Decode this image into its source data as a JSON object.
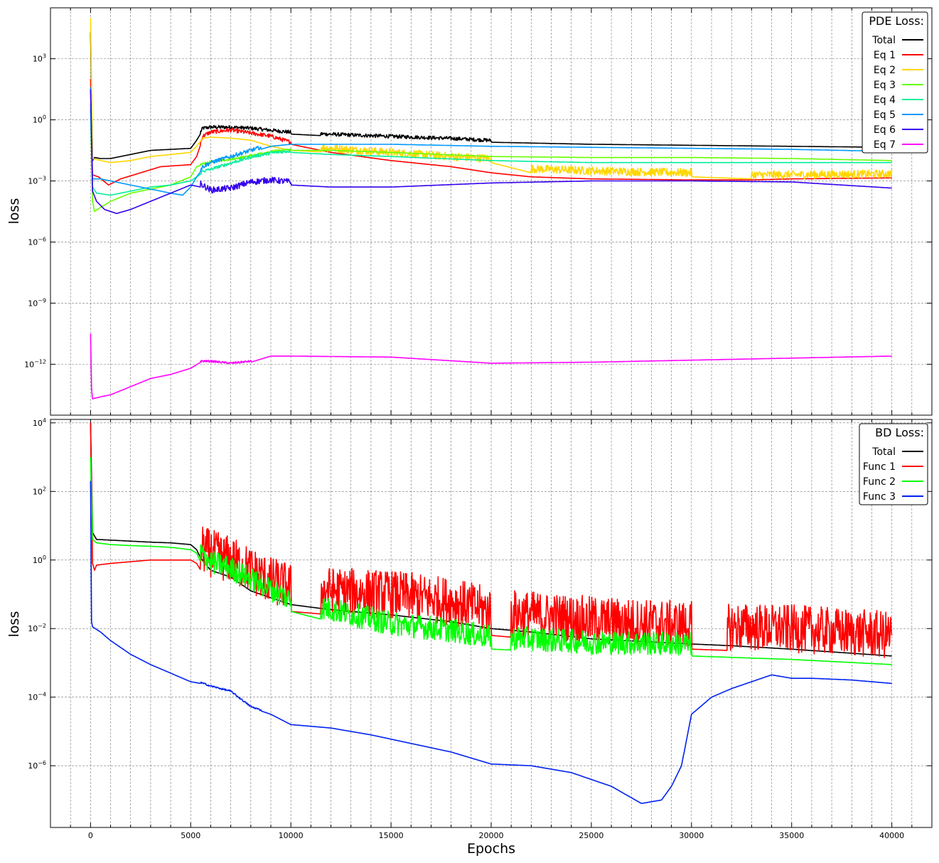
{
  "figure": {
    "xlabel": "Epochs",
    "xticks": [
      "0",
      "5000",
      "10000",
      "15000",
      "20000",
      "25000",
      "30000",
      "35000",
      "40000"
    ]
  },
  "chart_data": [
    {
      "type": "line",
      "title": "",
      "xlabel": "",
      "ylabel": "loss",
      "yscale": "log",
      "xlim": [
        -2000,
        42000
      ],
      "ylim": [
        -14.5,
        5.5
      ],
      "ytick_exponents": [
        "3",
        "0",
        "−3",
        "−6",
        "−9",
        "−12"
      ],
      "ytick_values": [
        3,
        0,
        -3,
        -6,
        -9,
        -12
      ],
      "grid": true,
      "legend": {
        "title": "PDE Loss:",
        "placement": "top-right"
      },
      "series": [
        {
          "name": "Total",
          "color": "#000000",
          "noise_amp": 0.18,
          "noise_ranges": [
            [
              5500,
              10000
            ],
            [
              11500,
              20000
            ]
          ],
          "x": [
            0,
            100,
            200,
            500,
            1000,
            2000,
            3000,
            4000,
            5000,
            5300,
            5600,
            6000,
            7000,
            8000,
            9000,
            10000,
            12000,
            15000,
            18000,
            20000,
            25000,
            30000,
            35000,
            40000
          ],
          "y": [
            4.3,
            -2.0,
            -1.85,
            -1.9,
            -1.9,
            -1.7,
            -1.5,
            -1.45,
            -1.4,
            -1.0,
            -0.5,
            -0.45,
            -0.45,
            -0.5,
            -0.6,
            -0.7,
            -0.8,
            -0.9,
            -1.0,
            -1.1,
            -1.2,
            -1.25,
            -1.3,
            -1.35
          ]
        },
        {
          "name": "Eq 1",
          "color": "#ff0000",
          "noise_amp": 0.2,
          "noise_ranges": [
            [
              5500,
              10000
            ]
          ],
          "x": [
            0,
            100,
            400,
            900,
            1500,
            2500,
            3500,
            5000,
            5300,
            5600,
            6000,
            7000,
            8000,
            9000,
            10000,
            12000,
            15000,
            18000,
            20000,
            22000,
            25000,
            30000,
            33000,
            35000,
            40000
          ],
          "y": [
            2.0,
            -2.7,
            -2.8,
            -3.2,
            -2.9,
            -2.6,
            -2.3,
            -2.2,
            -1.8,
            -0.9,
            -0.7,
            -0.6,
            -0.75,
            -0.9,
            -1.2,
            -1.6,
            -2.0,
            -2.3,
            -2.6,
            -2.8,
            -2.9,
            -2.95,
            -2.95,
            -2.9,
            -2.85
          ]
        },
        {
          "name": "Eq 2",
          "color": "#ffd700",
          "noise_amp": 0.4,
          "noise_ranges": [
            [
              11500,
              20000
            ],
            [
              22000,
              30000
            ],
            [
              33000,
              40000
            ]
          ],
          "x": [
            0,
            100,
            300,
            1000,
            2000,
            3000,
            4000,
            5000,
            5300,
            5600,
            6000,
            7000,
            8000,
            9000,
            10000,
            12000,
            15000,
            18000,
            20000,
            22000,
            25000,
            30000,
            33000,
            35000,
            40000
          ],
          "y": [
            5.0,
            -1.9,
            -1.95,
            -2.1,
            -2.0,
            -1.8,
            -1.7,
            -1.6,
            -1.3,
            -0.9,
            -0.85,
            -0.9,
            -1.0,
            -1.3,
            -1.5,
            -1.6,
            -1.8,
            -2.0,
            -2.1,
            -2.6,
            -2.7,
            -2.8,
            -2.9,
            -2.9,
            -2.85
          ]
        },
        {
          "name": "Eq 3",
          "color": "#66ff00",
          "noise_amp": 0.1,
          "noise_ranges": [
            [
              5500,
              10000
            ]
          ],
          "x": [
            0,
            100,
            200,
            500,
            1000,
            2000,
            3000,
            4000,
            5000,
            5300,
            5600,
            6000,
            7000,
            8000,
            9000,
            10000,
            12000,
            15000,
            20000,
            25000,
            30000,
            35000,
            40000
          ],
          "y": [
            0.8,
            -4.0,
            -4.5,
            -4.3,
            -4.0,
            -3.6,
            -3.4,
            -3.2,
            -2.8,
            -2.3,
            -2.2,
            -2.1,
            -2.0,
            -1.8,
            -1.6,
            -1.5,
            -1.5,
            -1.6,
            -1.8,
            -1.85,
            -1.85,
            -1.9,
            -2.0
          ]
        },
        {
          "name": "Eq 4",
          "color": "#00ee99",
          "noise_amp": 0.15,
          "noise_ranges": [
            [
              5500,
              10000
            ]
          ],
          "x": [
            0,
            100,
            300,
            1000,
            2000,
            3000,
            4000,
            5000,
            5300,
            5600,
            6000,
            7000,
            8000,
            9000,
            10000,
            12000,
            15000,
            20000,
            25000,
            30000,
            35000,
            40000
          ],
          "y": [
            0.5,
            -3.3,
            -3.6,
            -3.7,
            -3.5,
            -3.3,
            -3.2,
            -3.0,
            -2.8,
            -2.6,
            -2.5,
            -2.2,
            -1.9,
            -1.7,
            -1.6,
            -1.7,
            -1.8,
            -2.0,
            -2.1,
            -2.1,
            -2.1,
            -2.1
          ]
        },
        {
          "name": "Eq 5",
          "color": "#0099ff",
          "noise_amp": 0.2,
          "noise_ranges": [
            [
              5500,
              8500
            ]
          ],
          "x": [
            0,
            100,
            200,
            500,
            1000,
            2000,
            3000,
            4000,
            4600,
            5000,
            5300,
            5600,
            6000,
            7000,
            8000,
            9000,
            10000,
            12000,
            15000,
            20000,
            25000,
            30000,
            35000,
            40000
          ],
          "y": [
            1.6,
            -2.9,
            -2.9,
            -2.9,
            -3.0,
            -3.2,
            -3.4,
            -3.6,
            -3.7,
            -3.3,
            -2.8,
            -2.4,
            -2.2,
            -1.9,
            -1.6,
            -1.3,
            -1.2,
            -1.2,
            -1.2,
            -1.3,
            -1.35,
            -1.4,
            -1.45,
            -1.55
          ]
        },
        {
          "name": "Eq 6",
          "color": "#3300ee",
          "noise_amp": 0.3,
          "noise_ranges": [
            [
              5500,
              10000
            ]
          ],
          "x": [
            0,
            100,
            300,
            700,
            1300,
            2000,
            3000,
            4000,
            5000,
            5500,
            6000,
            7000,
            8000,
            9000,
            10000,
            12000,
            15000,
            20000,
            25000,
            30000,
            35000,
            40000
          ],
          "y": [
            1.5,
            -3.5,
            -4.0,
            -4.4,
            -4.6,
            -4.4,
            -4.0,
            -3.6,
            -3.2,
            -3.3,
            -3.6,
            -3.5,
            -3.2,
            -3.1,
            -3.2,
            -3.3,
            -3.3,
            -3.1,
            -3.0,
            -3.0,
            -3.05,
            -3.35
          ]
        },
        {
          "name": "Eq 7",
          "color": "#ff00ff",
          "noise_amp": 0.1,
          "noise_ranges": [
            [
              5500,
              8000
            ]
          ],
          "x": [
            0,
            50,
            100,
            500,
            1000,
            2000,
            3000,
            4000,
            5000,
            5500,
            6000,
            7000,
            8000,
            9000,
            10000,
            15000,
            20000,
            25000,
            30000,
            35000,
            40000
          ],
          "y": [
            -10.5,
            -13.2,
            -13.7,
            -13.6,
            -13.5,
            -13.1,
            -12.7,
            -12.5,
            -12.2,
            -11.9,
            -11.9,
            -12.0,
            -11.9,
            -11.6,
            -11.6,
            -11.65,
            -11.95,
            -11.9,
            -11.8,
            -11.7,
            -11.6
          ]
        }
      ]
    },
    {
      "type": "line",
      "title": "",
      "xlabel": "Epochs",
      "ylabel": "loss",
      "yscale": "log",
      "xlim": [
        -2000,
        42000
      ],
      "ylim": [
        -7.8,
        4.1
      ],
      "ytick_exponents": [
        "4",
        "2",
        "0",
        "−2",
        "−4",
        "−6"
      ],
      "ytick_values": [
        4,
        2,
        0,
        -2,
        -4,
        -6
      ],
      "grid": true,
      "legend": {
        "title": "BD Loss:",
        "placement": "top-right"
      },
      "series": [
        {
          "name": "Total",
          "color": "#000000",
          "noise_amp": 0.0,
          "noise_ranges": [],
          "x": [
            0,
            100,
            300,
            1000,
            2000,
            3000,
            4000,
            5000,
            5300,
            5500,
            6000,
            7000,
            8000,
            9000,
            10000,
            12000,
            15000,
            18000,
            20000,
            22000,
            25000,
            30000,
            32000,
            35000,
            40000
          ],
          "y": [
            4.0,
            0.8,
            0.6,
            0.58,
            0.55,
            0.52,
            0.5,
            0.45,
            0.3,
            0.05,
            -0.3,
            -0.5,
            -0.9,
            -1.1,
            -1.3,
            -1.45,
            -1.6,
            -1.8,
            -2.0,
            -2.1,
            -2.3,
            -2.45,
            -2.5,
            -2.6,
            -2.8
          ]
        },
        {
          "name": "Func 1",
          "color": "#ff0000",
          "noise_amp": 1.4,
          "noise_ranges": [
            [
              5500,
              10000
            ],
            [
              11500,
              20000
            ],
            [
              21000,
              30000
            ],
            [
              31800,
              40000
            ]
          ],
          "x": [
            0,
            100,
            200,
            300,
            1000,
            2000,
            3000,
            4000,
            5000,
            5300,
            5600,
            6000,
            7000,
            8000,
            9000,
            10000,
            12000,
            15000,
            18000,
            20000,
            22000,
            25000,
            30000,
            35000,
            40000
          ],
          "y": [
            4.0,
            -0.1,
            -0.3,
            -0.15,
            -0.1,
            -0.05,
            0.0,
            0.0,
            0.0,
            -0.1,
            -0.4,
            -0.5,
            -0.7,
            -1.0,
            -1.3,
            -1.5,
            -1.6,
            -1.7,
            -1.9,
            -2.2,
            -2.3,
            -2.45,
            -2.6,
            -2.7,
            -2.9
          ]
        },
        {
          "name": "Func 2",
          "color": "#00ff00",
          "noise_amp": 0.7,
          "noise_ranges": [
            [
              5500,
              10000
            ],
            [
              11500,
              20000
            ],
            [
              21000,
              30000
            ]
          ],
          "x": [
            0,
            100,
            300,
            1000,
            2000,
            3000,
            4000,
            5000,
            5300,
            5600,
            6000,
            7000,
            8000,
            9000,
            10000,
            12000,
            15000,
            18000,
            20000,
            22000,
            25000,
            30000,
            35000,
            40000
          ],
          "y": [
            3.0,
            0.6,
            0.5,
            0.45,
            0.42,
            0.4,
            0.37,
            0.3,
            0.2,
            -0.2,
            -0.4,
            -0.6,
            -0.9,
            -1.2,
            -1.5,
            -1.8,
            -2.2,
            -2.4,
            -2.6,
            -2.65,
            -2.75,
            -2.8,
            -2.9,
            -3.05
          ]
        },
        {
          "name": "Func 3",
          "color": "#0022ee",
          "noise_amp": 0.05,
          "noise_ranges": [
            [
              5500,
              8500
            ]
          ],
          "x": [
            0,
            50,
            100,
            500,
            1000,
            2000,
            3000,
            4000,
            5000,
            5500,
            6000,
            7000,
            8000,
            9000,
            10000,
            12000,
            14000,
            16000,
            18000,
            20000,
            22000,
            24000,
            26000,
            27500,
            28500,
            29000,
            29500,
            30000,
            31000,
            32000,
            33000,
            34000,
            35000,
            36000,
            38000,
            40000
          ],
          "y": [
            2.3,
            -1.8,
            -1.95,
            -2.1,
            -2.35,
            -2.75,
            -3.05,
            -3.3,
            -3.55,
            -3.6,
            -3.7,
            -3.85,
            -4.3,
            -4.5,
            -4.8,
            -4.9,
            -5.1,
            -5.35,
            -5.6,
            -5.95,
            -6.0,
            -6.2,
            -6.6,
            -7.1,
            -7.0,
            -6.6,
            -6.0,
            -4.5,
            -4.0,
            -3.75,
            -3.55,
            -3.35,
            -3.45,
            -3.45,
            -3.5,
            -3.6
          ]
        }
      ]
    }
  ]
}
